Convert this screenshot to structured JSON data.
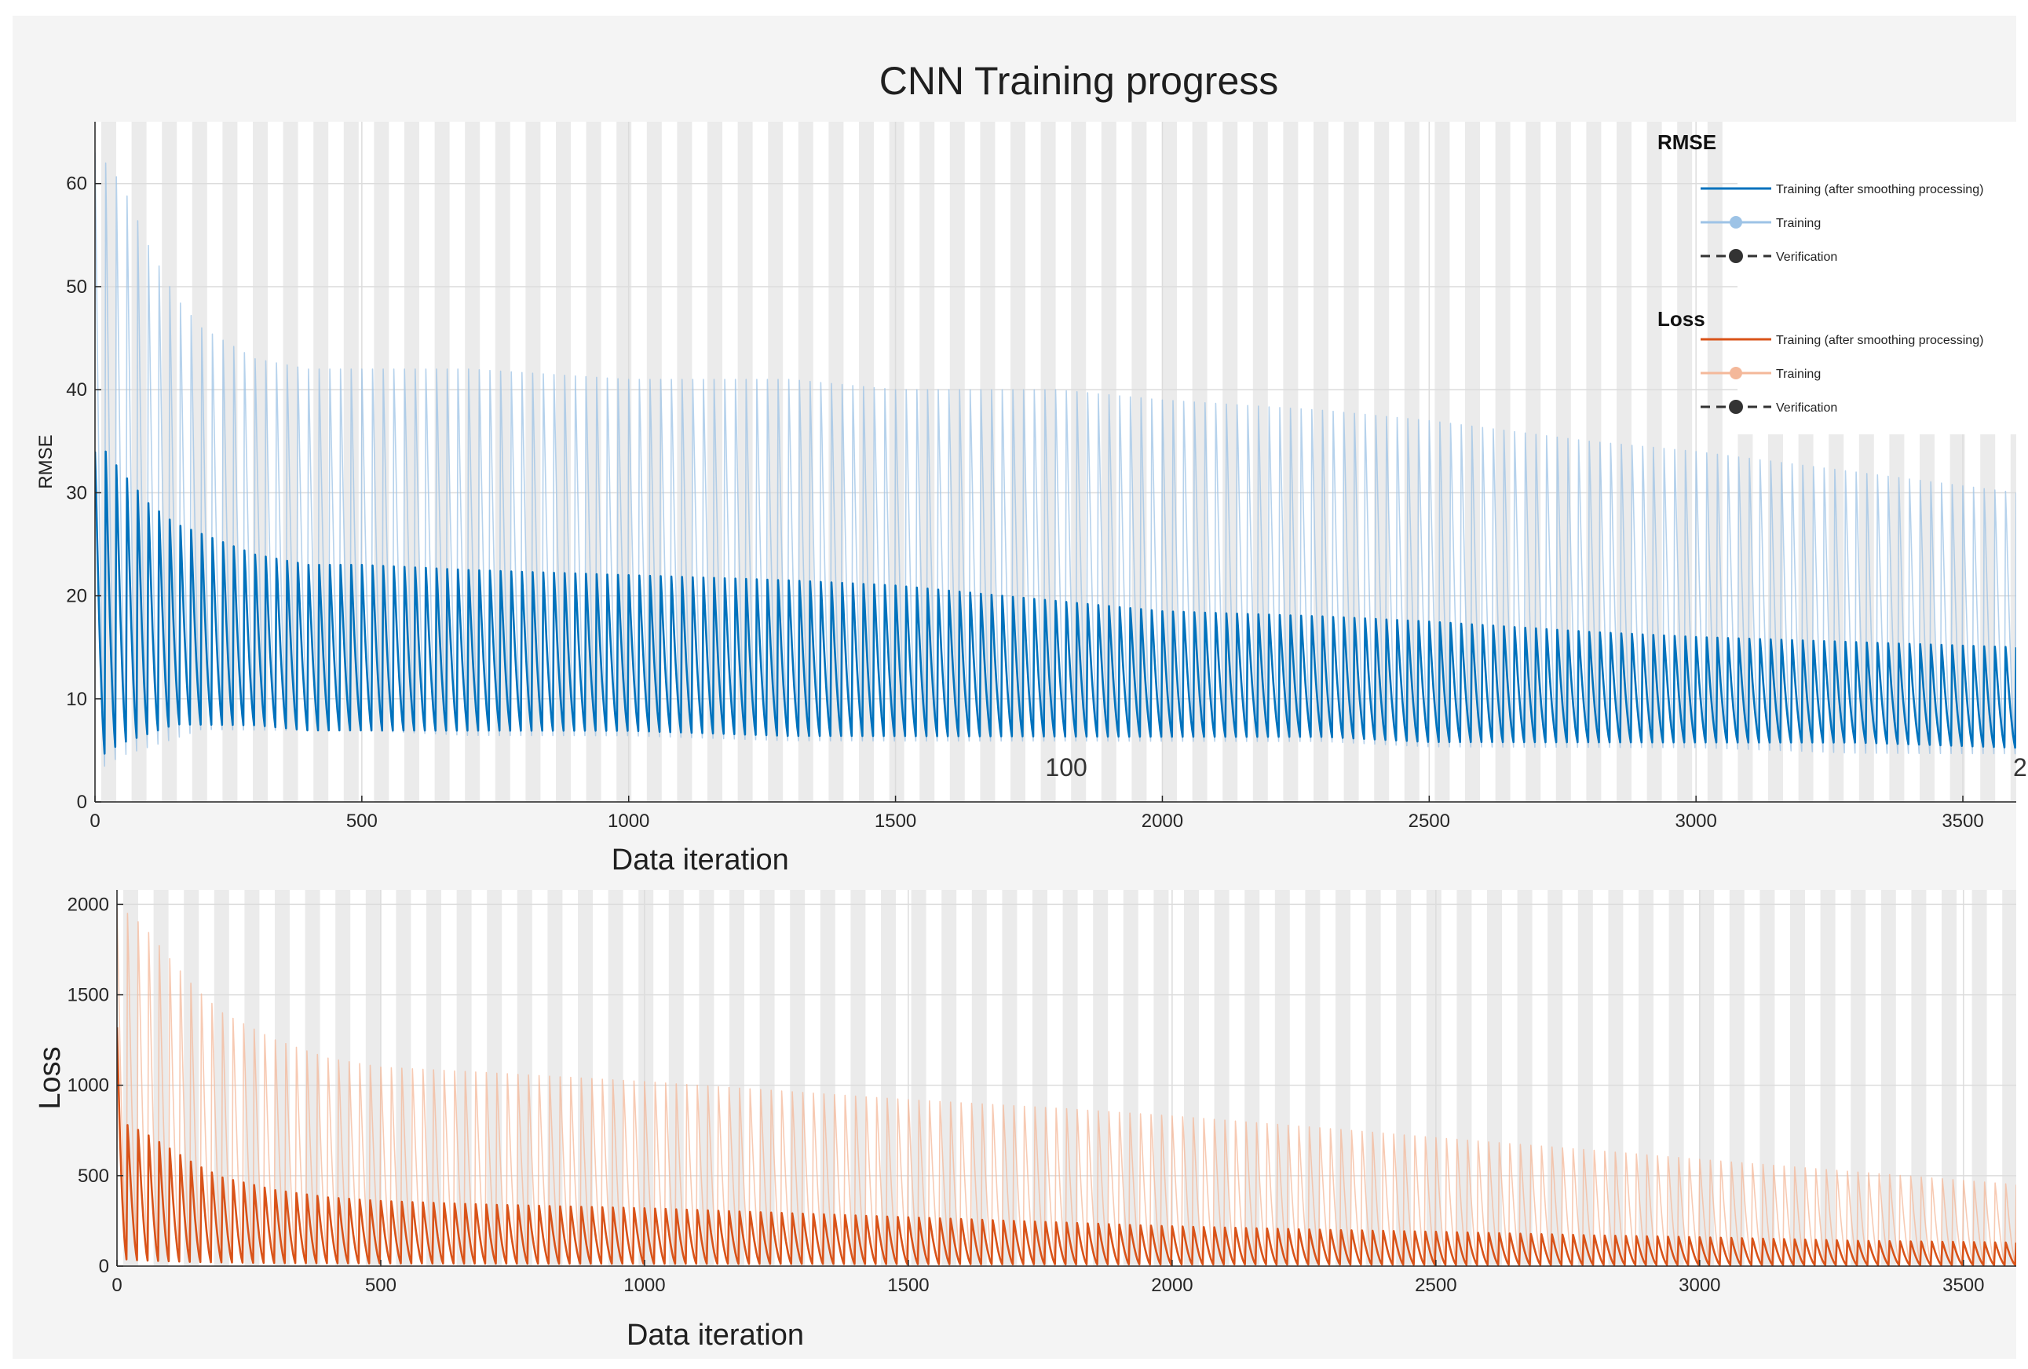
{
  "title": "CNN Training progress",
  "colors": {
    "figure_bg": "#f4f4f4",
    "axes_bg": "#ffffff",
    "band": "#ebebeb",
    "grid": "#dcdcdc",
    "axis": "#262626",
    "rmse_smoothed": "#0072bd",
    "rmse_raw": "#9dc3e6",
    "loss_smoothed": "#d95319",
    "loss_raw": "#f4b89a",
    "verification": "#333333"
  },
  "chart_data": [
    {
      "type": "line",
      "name": "rmse-panel",
      "xlabel": "Data iteration",
      "ylabel": "RMSE",
      "xlim": [
        0,
        3600
      ],
      "ylim": [
        0,
        66
      ],
      "xticks": [
        0,
        500,
        1000,
        1500,
        2000,
        2500,
        3000,
        3500
      ],
      "yticks": [
        0,
        10,
        20,
        30,
        40,
        50,
        60
      ],
      "epoch_period": 20,
      "annotation": {
        "text": "100",
        "x": 1820,
        "y": 2.5
      },
      "annotation_right": {
        "text": "2",
        "x": 3600,
        "y": 2.5
      },
      "series": [
        {
          "name": "Training",
          "role": "raw",
          "x": [
            0,
            20,
            50,
            100,
            150,
            200,
            300,
            400,
            500,
            700,
            1000,
            1300,
            1500,
            1800,
            2000,
            2300,
            2500,
            2800,
            3000,
            3300,
            3600
          ],
          "upper": [
            63,
            62,
            60,
            54,
            49,
            46,
            43,
            42,
            42,
            42,
            41,
            41,
            40,
            40,
            39,
            38,
            37,
            35,
            34,
            32,
            30
          ],
          "lower": [
            1,
            2,
            3,
            4,
            5,
            6,
            6,
            6,
            6,
            5.5,
            5.5,
            5,
            5,
            5,
            5,
            5,
            4.5,
            4.5,
            4.5,
            4,
            4
          ]
        },
        {
          "name": "Training (after smoothing processing)",
          "role": "smoothed",
          "x": [
            0,
            20,
            50,
            100,
            150,
            200,
            300,
            400,
            500,
            700,
            1000,
            1300,
            1500,
            1800,
            2000,
            2300,
            2500,
            2800,
            3000,
            3300,
            3600
          ],
          "upper": [
            34,
            34,
            32,
            29,
            27,
            26,
            24,
            23,
            23,
            22.5,
            22,
            21.5,
            21,
            19.5,
            18.5,
            18,
            17.5,
            16.5,
            16,
            15.5,
            15
          ],
          "lower": [
            3,
            4,
            5,
            6,
            7,
            7,
            7,
            6.5,
            6.5,
            6.5,
            6.5,
            6,
            6,
            6,
            6,
            6,
            5.5,
            5.5,
            5.5,
            5.5,
            5
          ]
        }
      ]
    },
    {
      "type": "line",
      "name": "loss-panel",
      "xlabel": "Data iteration",
      "ylabel": "Loss",
      "xlim": [
        0,
        3600
      ],
      "ylim": [
        0,
        2080
      ],
      "xticks": [
        0,
        500,
        1000,
        1500,
        2000,
        2500,
        3000,
        3500
      ],
      "yticks": [
        0,
        500,
        1000,
        1500,
        2000
      ],
      "epoch_period": 20,
      "series": [
        {
          "name": "Training",
          "role": "raw",
          "x": [
            0,
            20,
            50,
            100,
            150,
            200,
            300,
            400,
            500,
            700,
            1000,
            1300,
            1500,
            1800,
            2000,
            2300,
            2500,
            2800,
            3000,
            3300,
            3600
          ],
          "upper": [
            1980,
            1950,
            1880,
            1700,
            1530,
            1400,
            1250,
            1150,
            1100,
            1070,
            1020,
            960,
            920,
            870,
            830,
            760,
            710,
            640,
            590,
            520,
            450
          ],
          "lower": [
            30,
            30,
            25,
            20,
            15,
            15,
            10,
            10,
            10,
            10,
            8,
            8,
            8,
            6,
            6,
            6,
            5,
            5,
            5,
            4,
            4
          ]
        },
        {
          "name": "Training (after smoothing processing)",
          "role": "smoothed",
          "x": [
            0,
            20,
            50,
            100,
            150,
            200,
            300,
            400,
            500,
            700,
            1000,
            1300,
            1500,
            1800,
            2000,
            2300,
            2500,
            2800,
            3000,
            3300,
            3600
          ],
          "upper": [
            1320,
            780,
            740,
            650,
            560,
            490,
            420,
            380,
            360,
            340,
            320,
            290,
            270,
            240,
            220,
            200,
            190,
            170,
            160,
            140,
            130
          ],
          "lower": [
            20,
            15,
            12,
            10,
            8,
            8,
            6,
            6,
            6,
            5,
            5,
            5,
            4,
            4,
            4,
            4,
            3,
            3,
            3,
            3,
            3
          ]
        }
      ]
    }
  ],
  "legend": {
    "rmse_title": "RMSE",
    "loss_title": "Loss",
    "rmse_items": [
      {
        "label": "Training (after smoothing processing)",
        "style": "smoothed"
      },
      {
        "label": "Training",
        "style": "raw"
      },
      {
        "label": "Verification",
        "style": "verification"
      }
    ],
    "loss_items": [
      {
        "label": "Training (after smoothing processing)",
        "style": "smoothed"
      },
      {
        "label": "Training",
        "style": "raw"
      },
      {
        "label": "Verification",
        "style": "verification"
      }
    ]
  }
}
